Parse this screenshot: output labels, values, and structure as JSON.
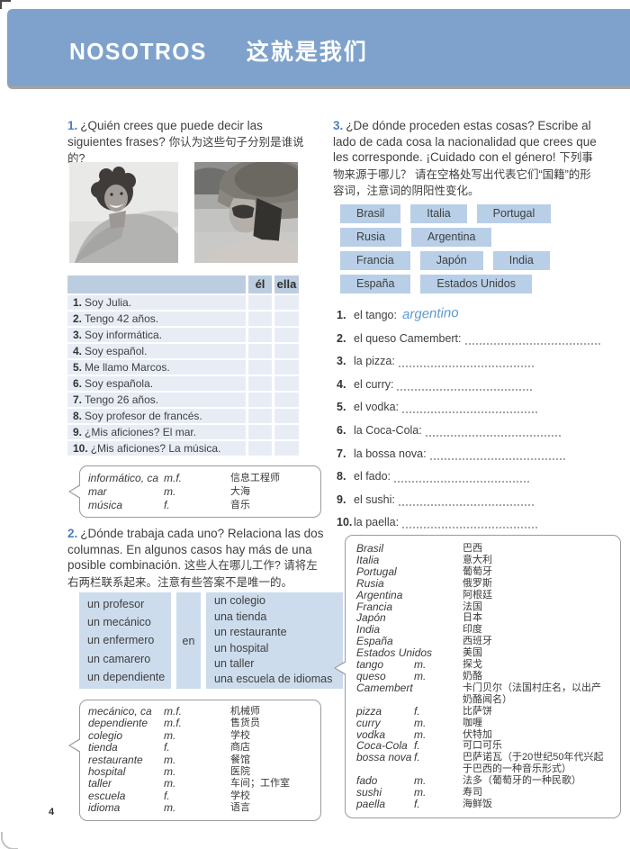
{
  "page": {
    "header": {
      "title_es": "NOSOTROS",
      "title_zh": "这就是我们"
    },
    "page_number": "4"
  },
  "colors": {
    "header_band": "#7ea2cb",
    "accent_blue": "#4a7fbe",
    "table_header_bg": "#bccde0",
    "table_row_bg": "#e8edf5",
    "match_box_bg": "#ccdcec",
    "chip_bg": "#b9cfe7",
    "handwriting_blue": "#5b9bd0"
  },
  "exercise1": {
    "number": "1.",
    "prompt_es": "¿Quién crees que puede decir las siguientes frases?",
    "prompt_zh": "你认为这些句子分别是谁说的?",
    "photos": {
      "left_alt": "smiling man with dark curly hair at the beach",
      "right_alt": "woman with straw hat and sunglasses at the beach"
    },
    "table": {
      "col_el": "él",
      "col_ella": "ella",
      "rows": [
        {
          "num": "1.",
          "text": "Soy Julia."
        },
        {
          "num": "2.",
          "text": "Tengo 42 años."
        },
        {
          "num": "3.",
          "text": "Soy informática."
        },
        {
          "num": "4.",
          "text": "Soy español."
        },
        {
          "num": "5.",
          "text": "Me llamo Marcos."
        },
        {
          "num": "6.",
          "text": "Soy española."
        },
        {
          "num": "7.",
          "text": "Tengo 26 años."
        },
        {
          "num": "8.",
          "text": "Soy profesor de francés."
        },
        {
          "num": "9.",
          "text": "¿Mis aficiones? El mar."
        },
        {
          "num": "10.",
          "text": "¿Mis aficiones? La música."
        }
      ]
    },
    "vocab": [
      {
        "word": "informático, ca",
        "gender": "m.f.",
        "def": "信息工程师"
      },
      {
        "word": "mar",
        "gender": "m.",
        "def": "大海"
      },
      {
        "word": "música",
        "gender": "f.",
        "def": "音乐"
      }
    ]
  },
  "exercise2": {
    "number": "2.",
    "prompt_es": "¿Dónde trabaja cada uno? Relaciona las dos columnas. En algunos casos hay más de una posible combinación.",
    "prompt_zh": "这些人在哪儿工作? 请将左右两栏联系起来。注意有些答案不是唯一的。",
    "match": {
      "left": [
        "un profesor",
        "un mecánico",
        "un enfermero",
        "un camarero",
        "un dependiente"
      ],
      "connector": "en",
      "right": [
        "un colegio",
        "una tienda",
        "un restaurante",
        "un hospital",
        "un taller",
        "una escuela de idiomas"
      ]
    },
    "vocab": [
      {
        "word": "mecánico, ca",
        "gender": "m.f.",
        "def": "机械师"
      },
      {
        "word": "dependiente",
        "gender": "m.f.",
        "def": "售货员"
      },
      {
        "word": "colegio",
        "gender": "m.",
        "def": "学校"
      },
      {
        "word": "tienda",
        "gender": "f.",
        "def": "商店"
      },
      {
        "word": "restaurante",
        "gender": "m.",
        "def": "餐馆"
      },
      {
        "word": "hospital",
        "gender": "m.",
        "def": "医院"
      },
      {
        "word": "taller",
        "gender": "m.",
        "def": "车间；工作室"
      },
      {
        "word": "escuela",
        "gender": "f.",
        "def": "学校"
      },
      {
        "word": "idioma",
        "gender": "m.",
        "def": "语言"
      }
    ]
  },
  "exercise3": {
    "number": "3.",
    "prompt_es": "¿De dónde proceden estas cosas? Escribe al lado de cada cosa la nacionalidad que crees que les corresponde. ¡Cuidado con el género!",
    "prompt_zh": "下列事物来源于哪儿？ 请在空格处写出代表它们“国籍”的形容词，注意词的阴阳性变化。",
    "country_rows": [
      [
        "Brasil",
        "Italia",
        "Portugal"
      ],
      [
        "Rusia",
        "Argentina"
      ],
      [
        "Francia",
        "Japón",
        "India"
      ],
      [
        "España",
        "Estados Unidos"
      ]
    ],
    "items": [
      {
        "num": "1.",
        "label": "el tango:",
        "answer": "argentino",
        "dots": false
      },
      {
        "num": "2.",
        "label": "el queso Camembert:",
        "answer": "",
        "dots": true
      },
      {
        "num": "3.",
        "label": "la pizza:",
        "answer": "",
        "dots": true
      },
      {
        "num": "4.",
        "label": "el curry:",
        "answer": "",
        "dots": true
      },
      {
        "num": "5.",
        "label": "el vodka:",
        "answer": "",
        "dots": true
      },
      {
        "num": "6.",
        "label": "la Coca-Cola:",
        "answer": "",
        "dots": true
      },
      {
        "num": "7.",
        "label": "la bossa nova:",
        "answer": "",
        "dots": true
      },
      {
        "num": "8.",
        "label": "el fado:",
        "answer": "",
        "dots": true
      },
      {
        "num": "9.",
        "label": "el sushi:",
        "answer": "",
        "dots": true
      },
      {
        "num": "10.",
        "label": "la paella:",
        "answer": "",
        "dots": true
      }
    ],
    "vocab": [
      {
        "word": "Brasil",
        "gender": "",
        "def": "巴西"
      },
      {
        "word": "Italia",
        "gender": "",
        "def": "意大利"
      },
      {
        "word": "Portugal",
        "gender": "",
        "def": "葡萄牙"
      },
      {
        "word": "Rusia",
        "gender": "",
        "def": "俄罗斯"
      },
      {
        "word": "Argentina",
        "gender": "",
        "def": "阿根廷"
      },
      {
        "word": "Francia",
        "gender": "",
        "def": "法国"
      },
      {
        "word": "Japón",
        "gender": "",
        "def": "日本"
      },
      {
        "word": "India",
        "gender": "",
        "def": "印度"
      },
      {
        "word": "España",
        "gender": "",
        "def": "西班牙"
      },
      {
        "word": "Estados Unidos",
        "gender": "",
        "def": "美国"
      },
      {
        "word": "tango",
        "gender": "m.",
        "def": "探戈"
      },
      {
        "word": "queso",
        "gender": "m.",
        "def": "奶酪"
      },
      {
        "word": "Camembert",
        "gender": "",
        "def": "卡门贝尔（法国村庄名，以出产奶酪闻名）"
      },
      {
        "word": "pizza",
        "gender": "f.",
        "def": "比萨饼"
      },
      {
        "word": "curry",
        "gender": "m.",
        "def": "咖喱"
      },
      {
        "word": "vodka",
        "gender": "m.",
        "def": "伏特加"
      },
      {
        "word": "Coca-Cola",
        "gender": "f.",
        "def": "可口可乐"
      },
      {
        "word": "bossa nova",
        "gender": "f.",
        "def": "巴萨诺瓦（于20世纪50年代兴起于巴西的一种音乐形式）"
      },
      {
        "word": "fado",
        "gender": "m.",
        "def": "法多（葡萄牙的一种民歌）"
      },
      {
        "word": "sushi",
        "gender": "m.",
        "def": "寿司"
      },
      {
        "word": "paella",
        "gender": "f.",
        "def": "海鲜饭"
      }
    ]
  }
}
